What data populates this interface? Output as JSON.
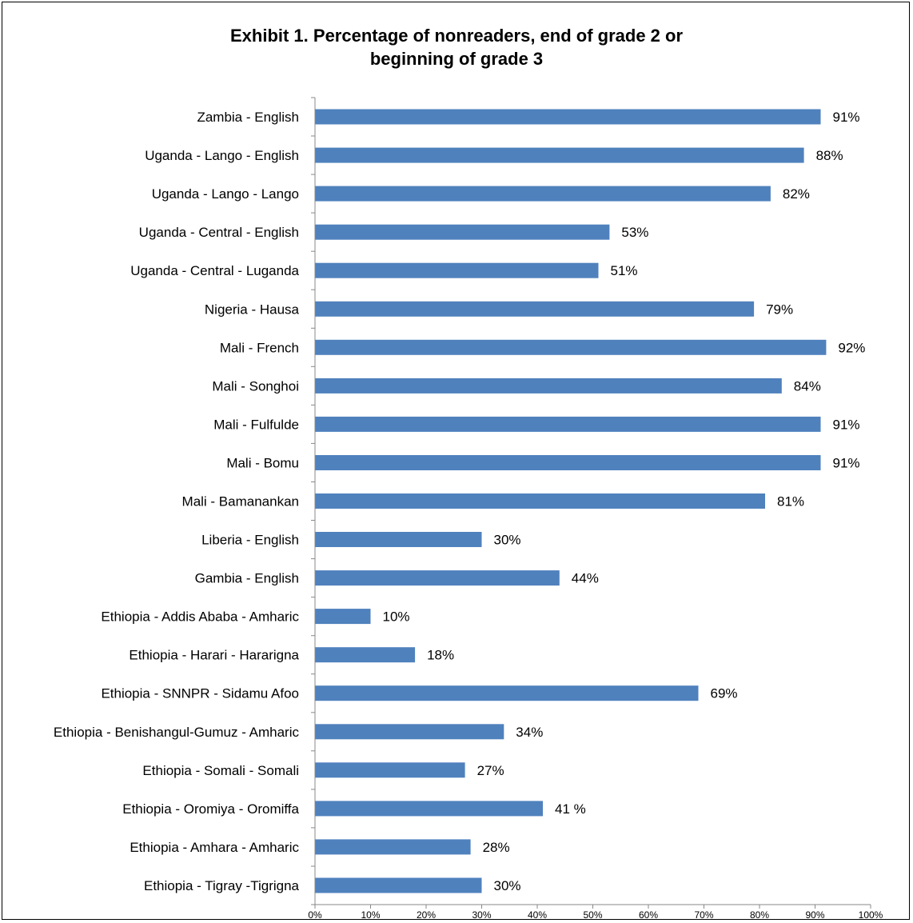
{
  "chart_data": {
    "type": "bar",
    "orientation": "horizontal",
    "title": "Exhibit 1. Percentage of nonreaders, end of grade 2 or beginning of grade 3",
    "title_lines": [
      "Exhibit 1. Percentage of nonreaders, end of grade 2 or",
      "beginning of grade 3"
    ],
    "categories": [
      "Zambia - English",
      "Uganda - Lango - English",
      "Uganda - Lango - Lango",
      "Uganda - Central - English",
      "Uganda - Central - Luganda",
      "Nigeria - Hausa",
      "Mali - French",
      "Mali - Songhoi",
      "Mali - Fulfulde",
      "Mali - Bomu",
      "Mali - Bamanankan",
      "Liberia - English",
      "Gambia - English",
      "Ethiopia - Addis Ababa - Amharic",
      "Ethiopia - Harari - Hararigna",
      "Ethiopia - SNNPR - Sidamu Afoo",
      "Ethiopia - Benishangul-Gumuz - Amharic",
      "Ethiopia - Somali - Somali",
      "Ethiopia - Oromiya - Oromiffa",
      "Ethiopia - Amhara - Amharic",
      "Ethiopia - Tigray -Tigrigna"
    ],
    "values": [
      91,
      88,
      82,
      53,
      51,
      79,
      92,
      84,
      91,
      91,
      81,
      30,
      44,
      10,
      18,
      69,
      34,
      27,
      41,
      28,
      30
    ],
    "data_labels": [
      "91%",
      "88%",
      "82%",
      "53%",
      "51%",
      "79%",
      "92%",
      "84%",
      "91%",
      "91%",
      "81%",
      "30%",
      "44%",
      "10%",
      "18%",
      "69%",
      "34%",
      "27%",
      "41 %",
      "28%",
      "30%"
    ],
    "x_ticks": [
      "0%",
      "10%",
      "20%",
      "30%",
      "40%",
      "50%",
      "60%",
      "70%",
      "80%",
      "90%",
      "100%"
    ],
    "xlim": [
      0,
      100
    ],
    "xlabel": "",
    "ylabel": "",
    "grid": false,
    "bar_color": "#4F81BD"
  }
}
